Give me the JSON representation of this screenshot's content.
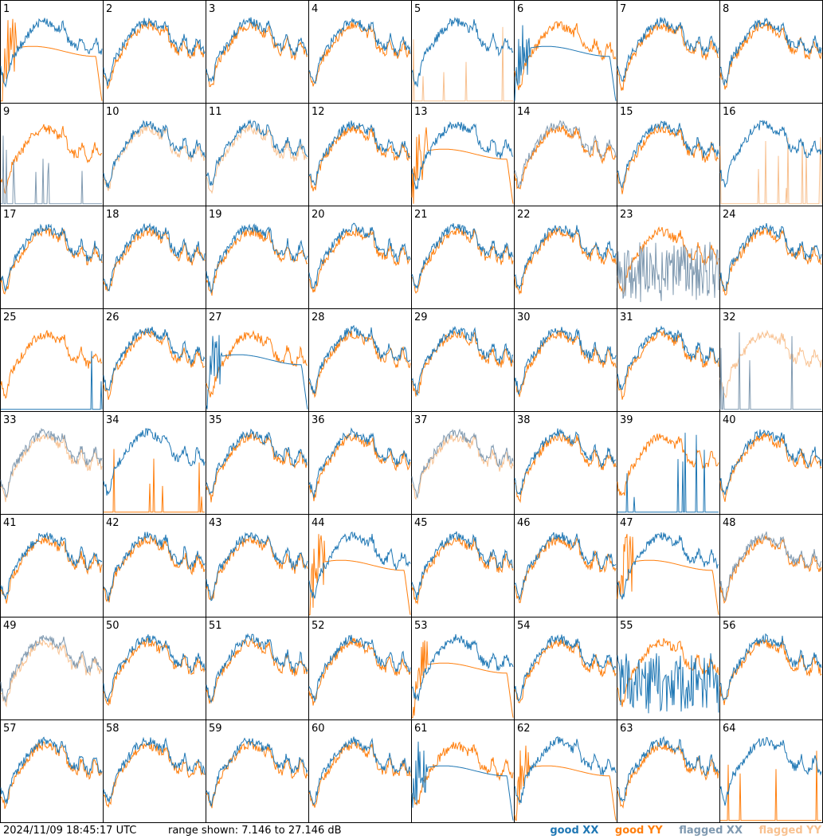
{
  "footer": {
    "timestamp": "2024/11/09 18:45:17 UTC",
    "range_text": "range shown: 7.146 to 27.146 dB"
  },
  "legend": {
    "good_xx": "good XX",
    "good_yy": "good YY",
    "flagged_xx": "flagged XX",
    "flagged_yy": "flagged YY"
  },
  "colors": {
    "good_xx": "#1f77b4",
    "good_yy": "#ff7f0e",
    "flagged_xx": "#7f99b0",
    "flagged_yy": "#f8c190"
  },
  "chart_data": {
    "type": "line",
    "panel_grid": [
      8,
      8
    ],
    "y_range_db": [
      7.146,
      27.146
    ],
    "panels": [
      {
        "id": "1",
        "xx": "good",
        "yy": "good",
        "xx_shape": "normal",
        "yy_shape": "bandpass"
      },
      {
        "id": "2",
        "xx": "good",
        "yy": "good",
        "xx_shape": "normal",
        "yy_shape": "normal"
      },
      {
        "id": "3",
        "xx": "good",
        "yy": "good",
        "xx_shape": "normal",
        "yy_shape": "normal"
      },
      {
        "id": "4",
        "xx": "good",
        "yy": "good",
        "xx_shape": "normal",
        "yy_shape": "normal"
      },
      {
        "id": "5",
        "xx": "good",
        "yy": "flagged",
        "xx_shape": "normal",
        "yy_shape": "dead"
      },
      {
        "id": "6",
        "xx": "good",
        "yy": "good",
        "xx_shape": "bandpass",
        "yy_shape": "normal"
      },
      {
        "id": "7",
        "xx": "good",
        "yy": "good",
        "xx_shape": "normal",
        "yy_shape": "normal"
      },
      {
        "id": "8",
        "xx": "good",
        "yy": "good",
        "xx_shape": "normal",
        "yy_shape": "normal"
      },
      {
        "id": "9",
        "xx": "flagged",
        "yy": "good",
        "xx_shape": "dead",
        "yy_shape": "normal"
      },
      {
        "id": "10",
        "xx": "good",
        "yy": "flagged",
        "xx_shape": "normal",
        "yy_shape": "normal"
      },
      {
        "id": "11",
        "xx": "good",
        "yy": "flagged",
        "xx_shape": "normal",
        "yy_shape": "normal"
      },
      {
        "id": "12",
        "xx": "good",
        "yy": "good",
        "xx_shape": "normal",
        "yy_shape": "normal"
      },
      {
        "id": "13",
        "xx": "good",
        "yy": "good",
        "xx_shape": "normal",
        "yy_shape": "bandpass"
      },
      {
        "id": "14",
        "xx": "flagged",
        "yy": "good",
        "xx_shape": "normal",
        "yy_shape": "normal"
      },
      {
        "id": "15",
        "xx": "good",
        "yy": "good",
        "xx_shape": "normal",
        "yy_shape": "normal"
      },
      {
        "id": "16",
        "xx": "good",
        "yy": "flagged",
        "xx_shape": "normal",
        "yy_shape": "dead"
      },
      {
        "id": "17",
        "xx": "good",
        "yy": "good",
        "xx_shape": "normal",
        "yy_shape": "normal"
      },
      {
        "id": "18",
        "xx": "good",
        "yy": "good",
        "xx_shape": "normal",
        "yy_shape": "normal"
      },
      {
        "id": "19",
        "xx": "good",
        "yy": "good",
        "xx_shape": "normal",
        "yy_shape": "normal"
      },
      {
        "id": "20",
        "xx": "good",
        "yy": "good",
        "xx_shape": "normal",
        "yy_shape": "normal"
      },
      {
        "id": "21",
        "xx": "good",
        "yy": "good",
        "xx_shape": "normal",
        "yy_shape": "normal"
      },
      {
        "id": "22",
        "xx": "good",
        "yy": "good",
        "xx_shape": "normal",
        "yy_shape": "normal"
      },
      {
        "id": "23",
        "xx": "flagged",
        "yy": "good",
        "xx_shape": "noisy",
        "yy_shape": "normal"
      },
      {
        "id": "24",
        "xx": "good",
        "yy": "good",
        "xx_shape": "normal",
        "yy_shape": "normal"
      },
      {
        "id": "25",
        "xx": "good",
        "yy": "good",
        "xx_shape": "dead",
        "yy_shape": "normal"
      },
      {
        "id": "26",
        "xx": "good",
        "yy": "good",
        "xx_shape": "normal",
        "yy_shape": "normal"
      },
      {
        "id": "27",
        "xx": "good",
        "yy": "good",
        "xx_shape": "bandpass",
        "yy_shape": "normal"
      },
      {
        "id": "28",
        "xx": "good",
        "yy": "good",
        "xx_shape": "normal",
        "yy_shape": "normal"
      },
      {
        "id": "29",
        "xx": "good",
        "yy": "good",
        "xx_shape": "normal",
        "yy_shape": "normal"
      },
      {
        "id": "30",
        "xx": "good",
        "yy": "good",
        "xx_shape": "normal",
        "yy_shape": "normal"
      },
      {
        "id": "31",
        "xx": "good",
        "yy": "good",
        "xx_shape": "normal",
        "yy_shape": "normal"
      },
      {
        "id": "32",
        "xx": "flagged",
        "yy": "flagged",
        "xx_shape": "dead",
        "yy_shape": "normal"
      },
      {
        "id": "33",
        "xx": "flagged",
        "yy": "flagged",
        "xx_shape": "normal",
        "yy_shape": "normal"
      },
      {
        "id": "34",
        "xx": "good",
        "yy": "good",
        "xx_shape": "normal",
        "yy_shape": "dead"
      },
      {
        "id": "35",
        "xx": "good",
        "yy": "good",
        "xx_shape": "normal",
        "yy_shape": "normal"
      },
      {
        "id": "36",
        "xx": "good",
        "yy": "good",
        "xx_shape": "normal",
        "yy_shape": "normal"
      },
      {
        "id": "37",
        "xx": "flagged",
        "yy": "flagged",
        "xx_shape": "normal",
        "yy_shape": "normal"
      },
      {
        "id": "38",
        "xx": "good",
        "yy": "good",
        "xx_shape": "normal",
        "yy_shape": "normal"
      },
      {
        "id": "39",
        "xx": "good",
        "yy": "good",
        "xx_shape": "dead",
        "yy_shape": "normal"
      },
      {
        "id": "40",
        "xx": "good",
        "yy": "good",
        "xx_shape": "normal",
        "yy_shape": "normal"
      },
      {
        "id": "41",
        "xx": "good",
        "yy": "good",
        "xx_shape": "normal",
        "yy_shape": "normal"
      },
      {
        "id": "42",
        "xx": "good",
        "yy": "good",
        "xx_shape": "normal",
        "yy_shape": "normal"
      },
      {
        "id": "43",
        "xx": "good",
        "yy": "good",
        "xx_shape": "normal",
        "yy_shape": "normal"
      },
      {
        "id": "44",
        "xx": "good",
        "yy": "good",
        "xx_shape": "normal",
        "yy_shape": "bandpass"
      },
      {
        "id": "45",
        "xx": "good",
        "yy": "good",
        "xx_shape": "normal",
        "yy_shape": "normal"
      },
      {
        "id": "46",
        "xx": "good",
        "yy": "good",
        "xx_shape": "normal",
        "yy_shape": "normal"
      },
      {
        "id": "47",
        "xx": "good",
        "yy": "good",
        "xx_shape": "normal",
        "yy_shape": "bandpass"
      },
      {
        "id": "48",
        "xx": "flagged",
        "yy": "good",
        "xx_shape": "normal",
        "yy_shape": "normal"
      },
      {
        "id": "49",
        "xx": "flagged",
        "yy": "flagged",
        "xx_shape": "normal",
        "yy_shape": "normal"
      },
      {
        "id": "50",
        "xx": "good",
        "yy": "good",
        "xx_shape": "normal",
        "yy_shape": "normal"
      },
      {
        "id": "51",
        "xx": "good",
        "yy": "good",
        "xx_shape": "normal",
        "yy_shape": "normal"
      },
      {
        "id": "52",
        "xx": "good",
        "yy": "good",
        "xx_shape": "normal",
        "yy_shape": "normal"
      },
      {
        "id": "53",
        "xx": "good",
        "yy": "good",
        "xx_shape": "normal",
        "yy_shape": "bandpass"
      },
      {
        "id": "54",
        "xx": "good",
        "yy": "good",
        "xx_shape": "normal",
        "yy_shape": "normal"
      },
      {
        "id": "55",
        "xx": "good",
        "yy": "good",
        "xx_shape": "noisy",
        "yy_shape": "normal"
      },
      {
        "id": "56",
        "xx": "good",
        "yy": "good",
        "xx_shape": "normal",
        "yy_shape": "normal"
      },
      {
        "id": "57",
        "xx": "good",
        "yy": "good",
        "xx_shape": "normal",
        "yy_shape": "normal"
      },
      {
        "id": "58",
        "xx": "good",
        "yy": "good",
        "xx_shape": "normal",
        "yy_shape": "normal"
      },
      {
        "id": "59",
        "xx": "good",
        "yy": "good",
        "xx_shape": "normal",
        "yy_shape": "normal"
      },
      {
        "id": "60",
        "xx": "good",
        "yy": "good",
        "xx_shape": "normal",
        "yy_shape": "normal"
      },
      {
        "id": "61",
        "xx": "good",
        "yy": "good",
        "xx_shape": "bandpass",
        "yy_shape": "normal"
      },
      {
        "id": "62",
        "xx": "good",
        "yy": "good",
        "xx_shape": "normal",
        "yy_shape": "bandpass"
      },
      {
        "id": "63",
        "xx": "good",
        "yy": "good",
        "xx_shape": "normal",
        "yy_shape": "normal"
      },
      {
        "id": "64",
        "xx": "good",
        "yy": "good",
        "xx_shape": "normal",
        "yy_shape": "dead"
      }
    ]
  }
}
